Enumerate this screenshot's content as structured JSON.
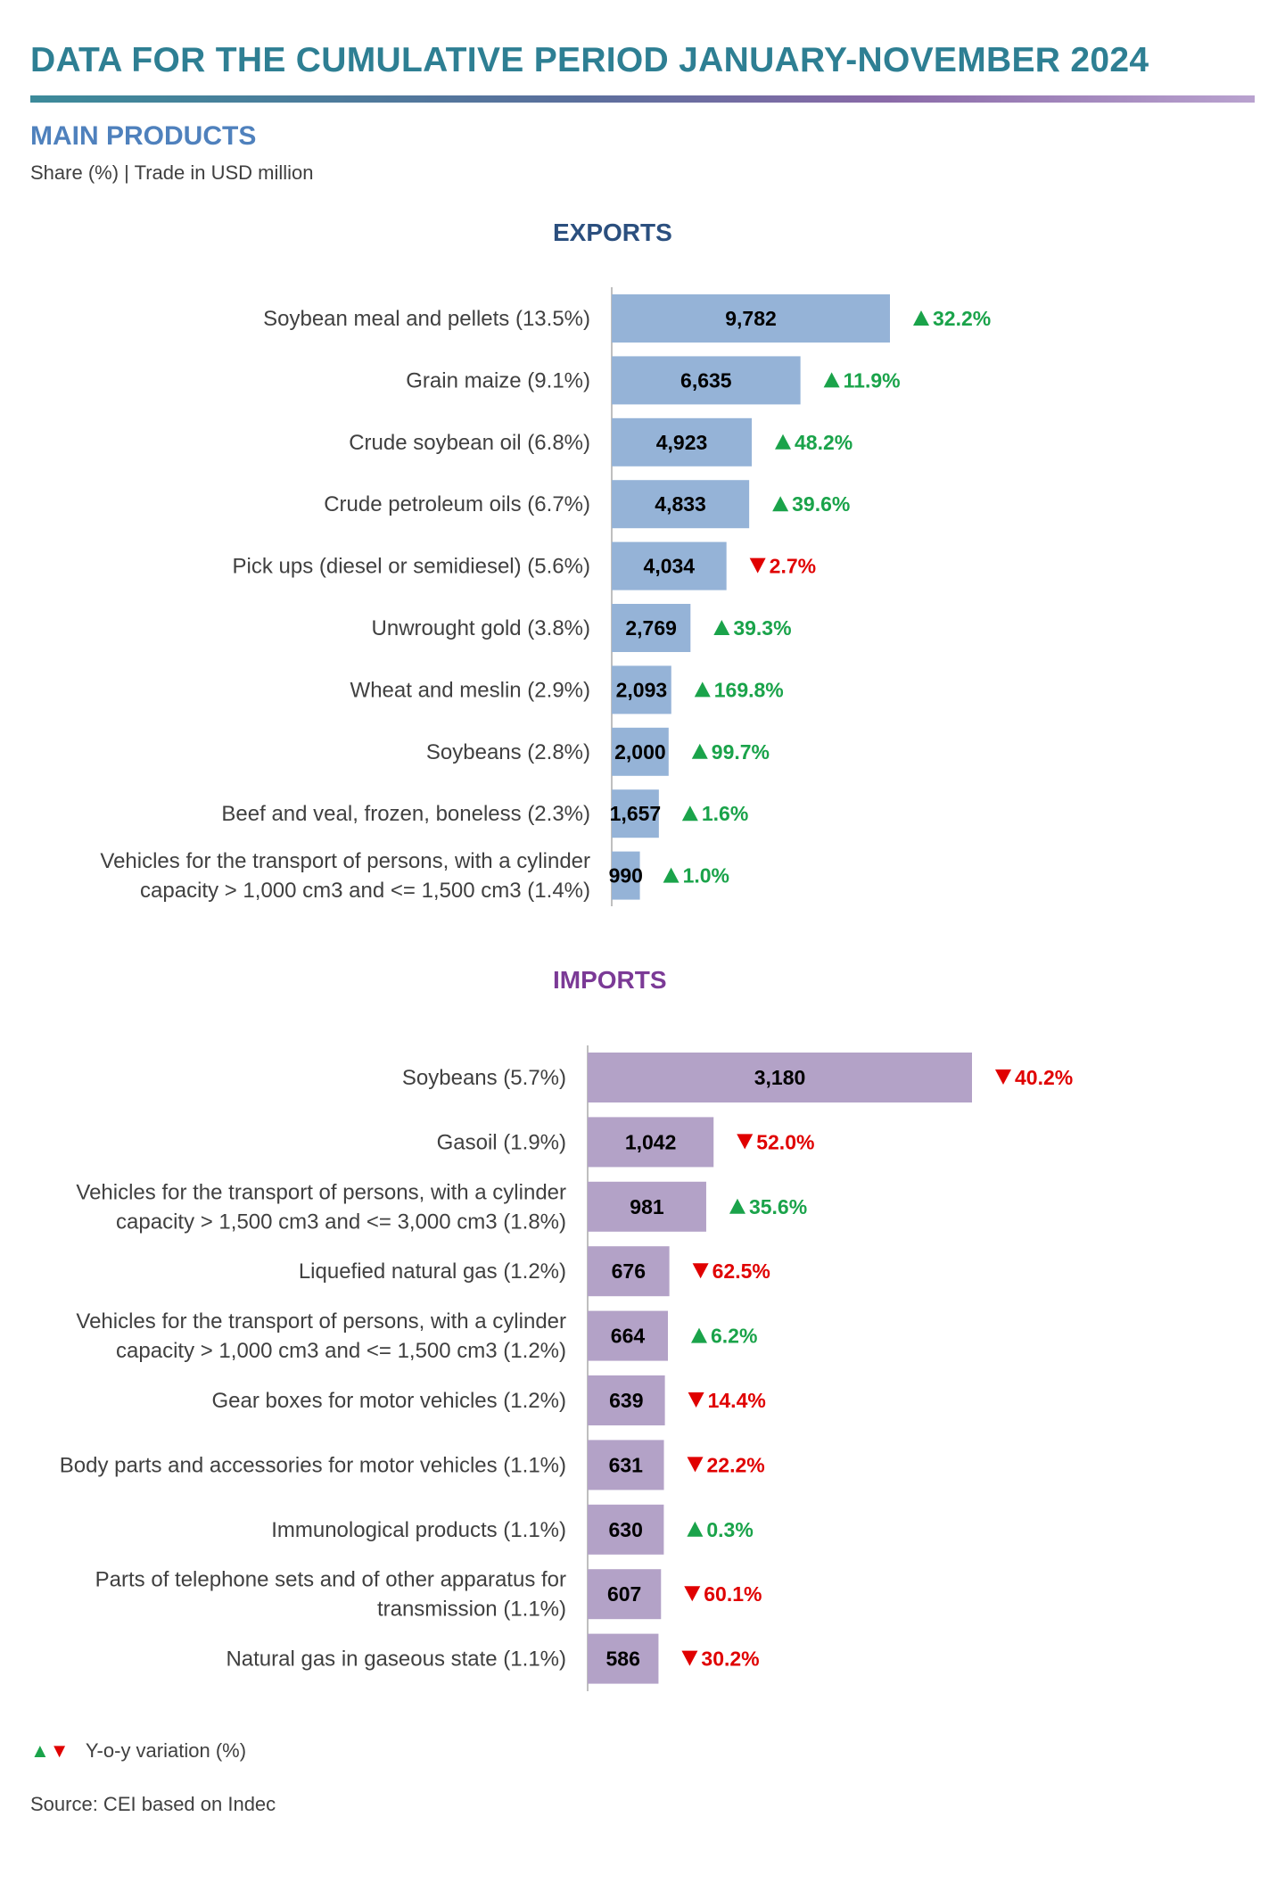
{
  "header": {
    "title": "DATA FOR THE CUMULATIVE PERIOD JANUARY-NOVEMBER 2024",
    "section": "MAIN PRODUCTS",
    "subtitle": "Share (%) | Trade in USD million"
  },
  "colors": {
    "title": "#2e7f93",
    "exports_bar": "#95b3d7",
    "imports_bar": "#b3a2c7",
    "up": "#1aa34a",
    "down": "#e00000"
  },
  "chart_data": [
    {
      "type": "bar",
      "orientation": "horizontal",
      "title": "EXPORTS",
      "unit": "USD million",
      "categories": [
        [
          "Soybean meal and pellets  (13.5%)"
        ],
        [
          "Grain maize  (9.1%)"
        ],
        [
          "Crude soybean oil (6.8%)"
        ],
        [
          "Crude petroleum oils (6.7%)"
        ],
        [
          "Pick ups (diesel or semidiesel)  (5.6%)"
        ],
        [
          "Unwrought gold  (3.8%)"
        ],
        [
          "Wheat and meslin  (2.9%)"
        ],
        [
          "Soybeans  (2.8%)"
        ],
        [
          "Beef and veal, frozen, boneless (2.3%)"
        ],
        [
          "Vehicles for the transport of persons, with a cylinder",
          "capacity  > 1,000 cm3 and <= 1,500 cm3  (1.4%)"
        ]
      ],
      "values": [
        9782,
        6635,
        4923,
        4833,
        4034,
        2769,
        2093,
        2000,
        1657,
        990
      ],
      "value_labels": [
        "9,782",
        "6,635",
        "4,923",
        "4,833",
        "4,034",
        "2,769",
        "2,093",
        "2,000",
        "1,657",
        "990"
      ],
      "yoy_variation": [
        "32.2%",
        "11.9%",
        "48.2%",
        "39.6%",
        "2.7%",
        "39.3%",
        "169.8%",
        "99.7%",
        "1.6%",
        "1.0%"
      ],
      "yoy_direction": [
        "up",
        "up",
        "up",
        "up",
        "down",
        "up",
        "up",
        "up",
        "up",
        "up"
      ]
    },
    {
      "type": "bar",
      "orientation": "horizontal",
      "title": "IMPORTS",
      "unit": "USD million",
      "categories": [
        [
          "Soybeans  (5.7%)"
        ],
        [
          "Gasoil  (1.9%)"
        ],
        [
          "Vehicles for the transport of persons, with a cylinder",
          "capacity  > 1,500 cm3 and <= 3,000 cm3  (1.8%)"
        ],
        [
          "Liquefied natural gas (1.2%)"
        ],
        [
          "Vehicles for the transport of persons, with a cylinder",
          "capacity  > 1,000 cm3 and <= 1,500 cm3  (1.2%)"
        ],
        [
          "Gear boxes for motor vehicles  (1.2%)"
        ],
        [
          "Body parts and accessories for motor vehicles (1.1%)"
        ],
        [
          "Immunological products (1.1%)"
        ],
        [
          "Parts of telephone sets and of other apparatus for",
          "transmission  (1.1%)"
        ],
        [
          "Natural gas in gaseous state (1.1%)"
        ]
      ],
      "values": [
        3180,
        1042,
        981,
        676,
        664,
        639,
        631,
        630,
        607,
        586
      ],
      "value_labels": [
        "3,180",
        "1,042",
        "981",
        "676",
        "664",
        "639",
        "631",
        "630",
        "607",
        "586"
      ],
      "yoy_variation": [
        "40.2%",
        "52.0%",
        "35.6%",
        "62.5%",
        "6.2%",
        "14.4%",
        "22.2%",
        "0.3%",
        "60.1%",
        "30.2%"
      ],
      "yoy_direction": [
        "down",
        "down",
        "up",
        "down",
        "up",
        "down",
        "down",
        "up",
        "down",
        "down"
      ]
    }
  ],
  "legend": {
    "up_symbol": "▲",
    "down_symbol": "▼",
    "label": "Y-o-y variation (%)"
  },
  "source": "Source: CEI based on Indec"
}
